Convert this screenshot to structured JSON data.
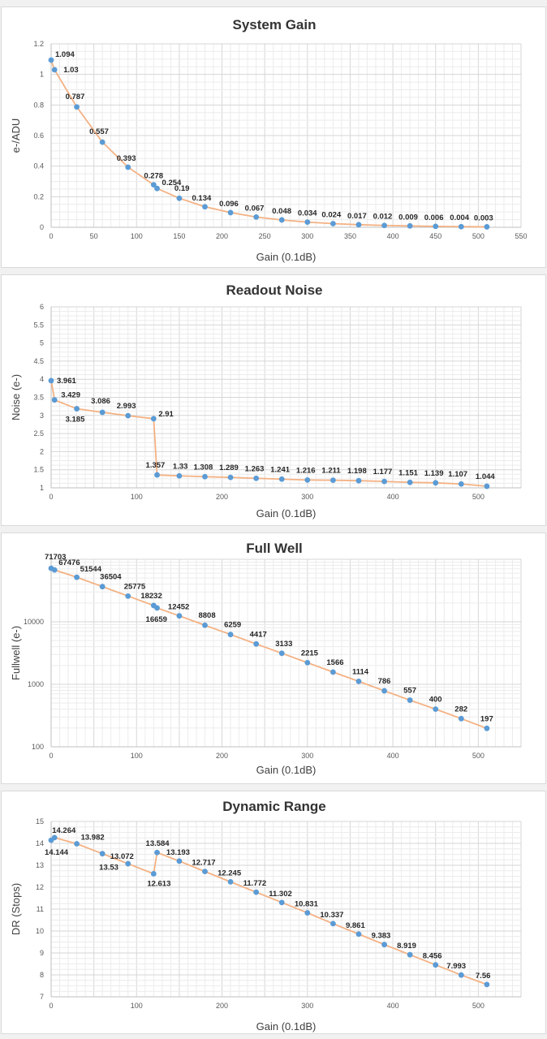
{
  "chart_data": [
    {
      "type": "line",
      "title": "System Gain",
      "xlabel": "Gain (0.1dB)",
      "ylabel": "e-/ADU",
      "xlim": [
        0,
        550
      ],
      "ylim": [
        0,
        1.2
      ],
      "xticks": [
        0,
        50,
        100,
        150,
        200,
        250,
        300,
        350,
        400,
        450,
        500,
        550
      ],
      "yticks": [
        0,
        0.2,
        0.4,
        0.6,
        0.8,
        1,
        1.2
      ],
      "ytick_labels": [
        "0",
        "0.2",
        "0.4",
        "0.6",
        "0.8",
        "1",
        "1.2"
      ],
      "grid": true,
      "x": [
        0,
        4,
        30,
        60,
        90,
        120,
        124,
        150,
        180,
        210,
        240,
        270,
        300,
        330,
        360,
        390,
        420,
        450,
        480,
        510
      ],
      "series": [
        {
          "values": [
            1.094,
            1.03,
            0.787,
            0.557,
            0.393,
            0.278,
            0.254,
            0.19,
            0.134,
            0.096,
            0.067,
            0.048,
            0.034,
            0.024,
            0.017,
            0.012,
            0.009,
            0.006,
            0.004,
            0.003
          ],
          "labels": [
            "1.094",
            "1.03",
            "0.787",
            "0.557",
            "0.393",
            "0.278",
            "0.254",
            "0.19",
            "0.134",
            "0.096",
            "0.067",
            "0.048",
            "0.034",
            "0.024",
            "0.017",
            "0.012",
            "0.009",
            "0.006",
            "0.004",
            "0.003"
          ]
        }
      ],
      "colors": {
        "line": "#f4b183",
        "marker": "#5b9bd5"
      }
    },
    {
      "type": "line",
      "title": "Readout Noise",
      "xlabel": "Gain (0.1dB)",
      "ylabel": "Noise (e-)",
      "xlim": [
        0,
        550
      ],
      "ylim": [
        1,
        6
      ],
      "xticks": [
        0,
        100,
        200,
        300,
        400,
        500
      ],
      "yticks": [
        1,
        1.5,
        2,
        2.5,
        3,
        3.5,
        4,
        4.5,
        5,
        5.5,
        6
      ],
      "ytick_labels": [
        "1",
        "1.5",
        "2",
        "2.5",
        "3",
        "3.5",
        "4",
        "4.5",
        "5",
        "5.5",
        "6"
      ],
      "grid": true,
      "x": [
        0,
        4,
        30,
        60,
        90,
        120,
        124,
        150,
        180,
        210,
        240,
        270,
        300,
        330,
        360,
        390,
        420,
        450,
        480,
        510
      ],
      "series": [
        {
          "values": [
            3.961,
            3.429,
            3.185,
            3.086,
            2.993,
            2.91,
            1.357,
            1.33,
            1.308,
            1.289,
            1.263,
            1.241,
            1.216,
            1.211,
            1.198,
            1.177,
            1.151,
            1.139,
            1.107,
            1.044
          ],
          "labels": [
            "3.961",
            "3.429",
            "3.185",
            "3.086",
            "2.993",
            "2.91",
            "1.357",
            "1.33",
            "1.308",
            "1.289",
            "1.263",
            "1.241",
            "1.216",
            "1.211",
            "1.198",
            "1.177",
            "1.151",
            "1.139",
            "1.107",
            "1.044"
          ]
        }
      ],
      "colors": {
        "line": "#f4b183",
        "marker": "#5b9bd5"
      }
    },
    {
      "type": "line",
      "title": "Full Well",
      "xlabel": "Gain (0.1dB)",
      "ylabel": "Fullwell (e-)",
      "xlim": [
        0,
        550
      ],
      "ylim": [
        100,
        100000
      ],
      "yscale": "log",
      "xticks": [
        0,
        100,
        200,
        300,
        400,
        500
      ],
      "yticks": [
        100,
        1000,
        10000
      ],
      "ytick_labels": [
        "100",
        "1000",
        "10000"
      ],
      "grid": true,
      "x": [
        0,
        4,
        30,
        60,
        90,
        120,
        124,
        150,
        180,
        210,
        240,
        270,
        300,
        330,
        360,
        390,
        420,
        450,
        480,
        510
      ],
      "series": [
        {
          "values": [
            71703,
            67476,
            51544,
            36504,
            25775,
            18232,
            16659,
            12452,
            8808,
            6259,
            4417,
            3133,
            2215,
            1566,
            1114,
            786,
            557,
            400,
            282,
            197
          ],
          "labels": [
            "71703",
            "67476",
            "51544",
            "36504",
            "25775",
            "18232",
            "16659",
            "12452",
            "8808",
            "6259",
            "4417",
            "3133",
            "2215",
            "1566",
            "1114",
            "786",
            "557",
            "400",
            "282",
            "197"
          ]
        }
      ],
      "colors": {
        "line": "#f4b183",
        "marker": "#5b9bd5"
      }
    },
    {
      "type": "line",
      "title": "Dynamic Range",
      "xlabel": "Gain (0.1dB)",
      "ylabel": "DR (Stops)",
      "xlim": [
        0,
        550
      ],
      "ylim": [
        7,
        15
      ],
      "xticks": [
        0,
        100,
        200,
        300,
        400,
        500
      ],
      "yticks": [
        7,
        8,
        9,
        10,
        11,
        12,
        13,
        14,
        15
      ],
      "ytick_labels": [
        "7",
        "8",
        "9",
        "10",
        "11",
        "12",
        "13",
        "14",
        "15"
      ],
      "grid": true,
      "x": [
        0,
        4,
        30,
        60,
        90,
        120,
        124,
        150,
        180,
        210,
        240,
        270,
        300,
        330,
        360,
        390,
        420,
        450,
        480,
        510
      ],
      "series": [
        {
          "values": [
            14.144,
            14.264,
            13.982,
            13.53,
            13.072,
            12.613,
            13.584,
            13.193,
            12.717,
            12.245,
            11.772,
            11.302,
            10.831,
            10.337,
            9.861,
            9.383,
            8.919,
            8.456,
            7.993,
            7.56
          ],
          "labels": [
            "14.144",
            "14.264",
            "13.982",
            "13.53",
            "13.072",
            "12.613",
            "13.584",
            "13.193",
            "12.717",
            "12.245",
            "11.772",
            "11.302",
            "10.831",
            "10.337",
            "9.861",
            "9.383",
            "8.919",
            "8.456",
            "7.993",
            "7.56"
          ]
        }
      ],
      "colors": {
        "line": "#f4b183",
        "marker": "#5b9bd5"
      }
    }
  ]
}
